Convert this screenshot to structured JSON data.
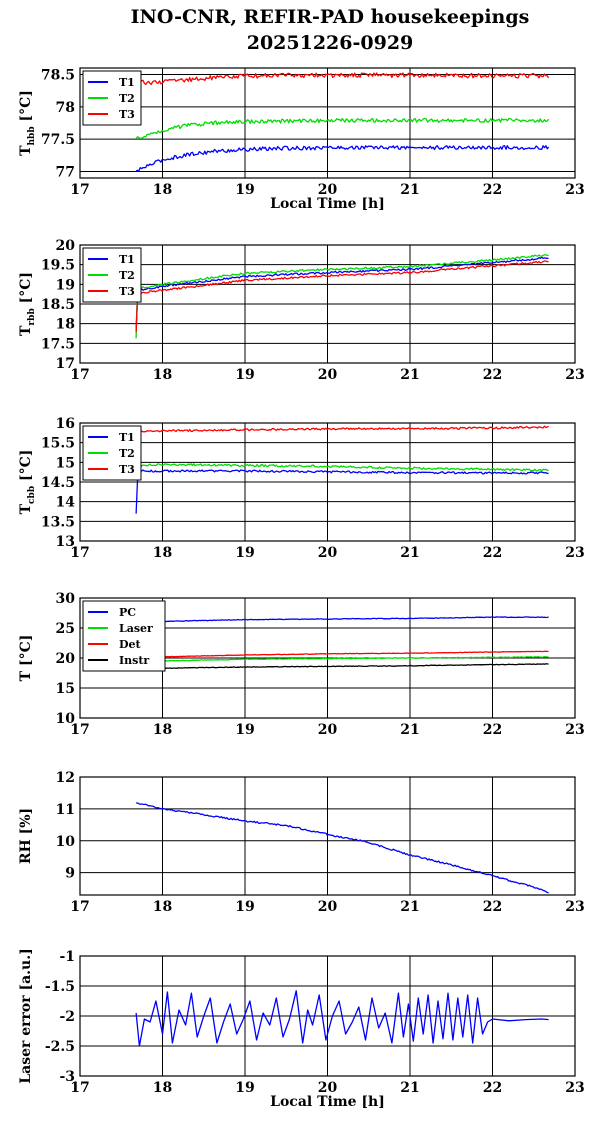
{
  "title": {
    "line1": "INO-CNR, REFIR-PAD housekeepings",
    "line2": "20251226-0929"
  },
  "chart_data": [
    {
      "type": "line",
      "xlabel": "Local Time [h]",
      "ylabel": "T",
      "ylabel_sub": "hbb",
      "ylabel_unit": " [°C]",
      "xlim": [
        17,
        23
      ],
      "ylim": [
        76.9,
        78.6
      ],
      "xticks": [
        17,
        18,
        19,
        20,
        21,
        22,
        23
      ],
      "yticks": [
        77,
        77.5,
        78,
        78.5
      ],
      "grid": true,
      "legend_position": "top-left",
      "series": [
        {
          "name": "T1",
          "color": "#0000ff",
          "noise": 0.03,
          "x": [
            17.68,
            17.8,
            18.0,
            18.3,
            18.6,
            19.0,
            19.5,
            20.0,
            21.0,
            22.0,
            22.68
          ],
          "y": [
            77.0,
            77.08,
            77.18,
            77.26,
            77.31,
            77.34,
            77.36,
            77.37,
            77.37,
            77.37,
            77.37
          ]
        },
        {
          "name": "T2",
          "color": "#00dd00",
          "noise": 0.03,
          "x": [
            17.68,
            17.8,
            18.0,
            18.3,
            18.6,
            19.0,
            19.5,
            20.0,
            21.0,
            22.0,
            22.68
          ],
          "y": [
            77.5,
            77.56,
            77.64,
            77.71,
            77.75,
            77.77,
            77.78,
            77.79,
            77.79,
            77.79,
            77.79
          ]
        },
        {
          "name": "T3",
          "color": "#ff0000",
          "noise": 0.035,
          "x": [
            17.68,
            18.0,
            18.5,
            19.0,
            20.0,
            21.0,
            22.0,
            22.68
          ],
          "y": [
            78.38,
            78.38,
            78.44,
            78.48,
            78.49,
            78.49,
            78.48,
            78.48
          ]
        }
      ]
    },
    {
      "type": "line",
      "xlabel": "",
      "ylabel": "T",
      "ylabel_sub": "rbb",
      "ylabel_unit": " [°C]",
      "xlim": [
        17,
        23
      ],
      "ylim": [
        17,
        20
      ],
      "xticks": [
        17,
        18,
        19,
        20,
        21,
        22,
        23
      ],
      "yticks": [
        17,
        17.5,
        18,
        18.5,
        19,
        19.5,
        20
      ],
      "grid": true,
      "legend_position": "top-left",
      "series": [
        {
          "name": "T1",
          "color": "#0000ff",
          "noise": 0.025,
          "x": [
            17.68,
            17.69,
            17.72,
            18.0,
            19.0,
            20.0,
            21.0,
            22.0,
            22.68
          ],
          "y": [
            17.9,
            18.7,
            18.85,
            18.95,
            19.2,
            19.3,
            19.38,
            19.55,
            19.68
          ]
        },
        {
          "name": "T2",
          "color": "#00dd00",
          "noise": 0.025,
          "x": [
            17.68,
            17.69,
            17.72,
            18.0,
            19.0,
            20.0,
            21.0,
            22.0,
            22.68
          ],
          "y": [
            17.65,
            18.8,
            18.9,
            19.0,
            19.28,
            19.38,
            19.45,
            19.62,
            19.75
          ]
        },
        {
          "name": "T3",
          "color": "#ff0000",
          "noise": 0.025,
          "x": [
            17.68,
            17.69,
            17.72,
            18.0,
            19.0,
            20.0,
            21.0,
            22.0,
            22.68
          ],
          "y": [
            17.8,
            18.6,
            18.78,
            18.85,
            19.1,
            19.22,
            19.3,
            19.47,
            19.58
          ]
        }
      ]
    },
    {
      "type": "line",
      "xlabel": "",
      "ylabel": "T",
      "ylabel_sub": "cbb",
      "ylabel_unit": " [°C]",
      "xlim": [
        17,
        23
      ],
      "ylim": [
        13,
        16
      ],
      "xticks": [
        17,
        18,
        19,
        20,
        21,
        22,
        23
      ],
      "yticks": [
        13,
        13.5,
        14,
        14.5,
        15,
        15.5,
        16
      ],
      "grid": true,
      "legend_position": "top-left",
      "series": [
        {
          "name": "T1",
          "color": "#0000ff",
          "noise": 0.025,
          "x": [
            17.68,
            17.69,
            17.72,
            18.0,
            19.0,
            20.0,
            21.0,
            22.0,
            22.68
          ],
          "y": [
            13.7,
            14.5,
            14.78,
            14.78,
            14.78,
            14.76,
            14.74,
            14.73,
            14.73
          ]
        },
        {
          "name": "T2",
          "color": "#00dd00",
          "noise": 0.025,
          "x": [
            17.68,
            17.72,
            18.0,
            19.0,
            20.0,
            21.0,
            22.0,
            22.68
          ],
          "y": [
            14.9,
            14.92,
            14.95,
            14.92,
            14.9,
            14.85,
            14.82,
            14.8
          ]
        },
        {
          "name": "T3",
          "color": "#ff0000",
          "noise": 0.025,
          "x": [
            17.68,
            18.0,
            19.0,
            20.0,
            21.0,
            22.0,
            22.68
          ],
          "y": [
            15.78,
            15.8,
            15.83,
            15.85,
            15.86,
            15.87,
            15.9
          ]
        }
      ]
    },
    {
      "type": "line",
      "xlabel": "",
      "ylabel": "T [°C]",
      "ylabel_sub": "",
      "ylabel_unit": "",
      "xlim": [
        17,
        23
      ],
      "ylim": [
        10,
        30
      ],
      "xticks": [
        17,
        18,
        19,
        20,
        21,
        22,
        23
      ],
      "yticks": [
        10,
        15,
        20,
        25,
        30
      ],
      "grid": true,
      "legend_position": "top-left",
      "series": [
        {
          "name": "PC",
          "color": "#0000ff",
          "noise": 0.05,
          "x": [
            17.68,
            18.0,
            19.0,
            20.0,
            21.0,
            22.0,
            22.68
          ],
          "y": [
            25.8,
            26.1,
            26.4,
            26.5,
            26.6,
            26.8,
            26.8
          ]
        },
        {
          "name": "Laser",
          "color": "#00dd00",
          "noise": 0.05,
          "x": [
            17.68,
            18.0,
            19.0,
            20.0,
            21.0,
            22.0,
            22.68
          ],
          "y": [
            19.3,
            19.5,
            19.8,
            19.9,
            20.0,
            20.1,
            20.2
          ]
        },
        {
          "name": "Det",
          "color": "#ff0000",
          "noise": 0.04,
          "x": [
            17.68,
            18.0,
            19.0,
            20.0,
            21.0,
            22.0,
            22.68
          ],
          "y": [
            19.9,
            20.2,
            20.5,
            20.7,
            20.8,
            21.0,
            21.1
          ]
        },
        {
          "name": "Instr",
          "color": "#000000",
          "noise": 0.05,
          "x": [
            17.68,
            18.0,
            19.0,
            20.0,
            21.0,
            22.0,
            22.68
          ],
          "y": [
            18.1,
            18.3,
            18.5,
            18.6,
            18.7,
            18.9,
            19.0
          ]
        }
      ]
    },
    {
      "type": "line",
      "xlabel": "",
      "ylabel": "RH [%]",
      "ylabel_sub": "",
      "ylabel_unit": "",
      "xlim": [
        17,
        23
      ],
      "ylim": [
        8.3,
        12
      ],
      "xticks": [
        17,
        18,
        19,
        20,
        21,
        22,
        23
      ],
      "yticks": [
        9,
        10,
        11,
        12
      ],
      "grid": true,
      "legend_position": "none",
      "series": [
        {
          "name": "",
          "color": "#0000ff",
          "noise": 0.025,
          "x": [
            17.68,
            18.0,
            18.5,
            19.0,
            19.5,
            20.0,
            20.5,
            21.0,
            21.5,
            22.0,
            22.5,
            22.68
          ],
          "y": [
            11.2,
            11.0,
            10.82,
            10.62,
            10.48,
            10.2,
            9.95,
            9.55,
            9.25,
            8.9,
            8.55,
            8.38
          ]
        }
      ]
    },
    {
      "type": "line",
      "xlabel": "Local Time [h]",
      "ylabel": "Laser error [a.u.]",
      "ylabel_sub": "",
      "ylabel_unit": "",
      "xlim": [
        17,
        23
      ],
      "ylim": [
        -3,
        -1
      ],
      "xticks": [
        17,
        18,
        19,
        20,
        21,
        22,
        23
      ],
      "yticks": [
        -3,
        -2.5,
        -2,
        -1.5,
        -1
      ],
      "grid": true,
      "legend_position": "none",
      "series": [
        {
          "name": "",
          "color": "#0000ff",
          "noise": 0,
          "x": [
            17.68,
            17.72,
            17.78,
            17.85,
            17.92,
            18.0,
            18.06,
            18.12,
            18.2,
            18.28,
            18.35,
            18.42,
            18.5,
            18.58,
            18.66,
            18.74,
            18.82,
            18.9,
            18.98,
            19.06,
            19.14,
            19.22,
            19.3,
            19.38,
            19.46,
            19.54,
            19.62,
            19.7,
            19.76,
            19.82,
            19.9,
            19.98,
            20.06,
            20.14,
            20.22,
            20.3,
            20.38,
            20.46,
            20.54,
            20.62,
            20.7,
            20.78,
            20.86,
            20.92,
            20.98,
            21.04,
            21.1,
            21.16,
            21.22,
            21.28,
            21.34,
            21.4,
            21.46,
            21.52,
            21.58,
            21.64,
            21.7,
            21.76,
            21.82,
            21.88,
            21.94,
            22.0,
            22.2,
            22.4,
            22.6,
            22.68
          ],
          "y": [
            -1.95,
            -2.5,
            -2.05,
            -2.1,
            -1.75,
            -2.3,
            -1.6,
            -2.45,
            -1.9,
            -2.15,
            -1.62,
            -2.35,
            -2.0,
            -1.7,
            -2.45,
            -2.1,
            -1.8,
            -2.3,
            -2.05,
            -1.75,
            -2.4,
            -1.95,
            -2.15,
            -1.7,
            -2.35,
            -2.05,
            -1.58,
            -2.45,
            -1.9,
            -2.15,
            -1.65,
            -2.4,
            -2.0,
            -1.75,
            -2.3,
            -2.1,
            -1.85,
            -2.4,
            -1.7,
            -2.2,
            -1.95,
            -2.45,
            -1.62,
            -2.35,
            -1.8,
            -2.42,
            -1.7,
            -2.3,
            -1.65,
            -2.45,
            -1.75,
            -2.38,
            -1.62,
            -2.4,
            -1.7,
            -2.35,
            -1.65,
            -2.45,
            -1.7,
            -2.3,
            -2.1,
            -2.05,
            -2.08,
            -2.06,
            -2.05,
            -2.06
          ]
        }
      ]
    }
  ]
}
